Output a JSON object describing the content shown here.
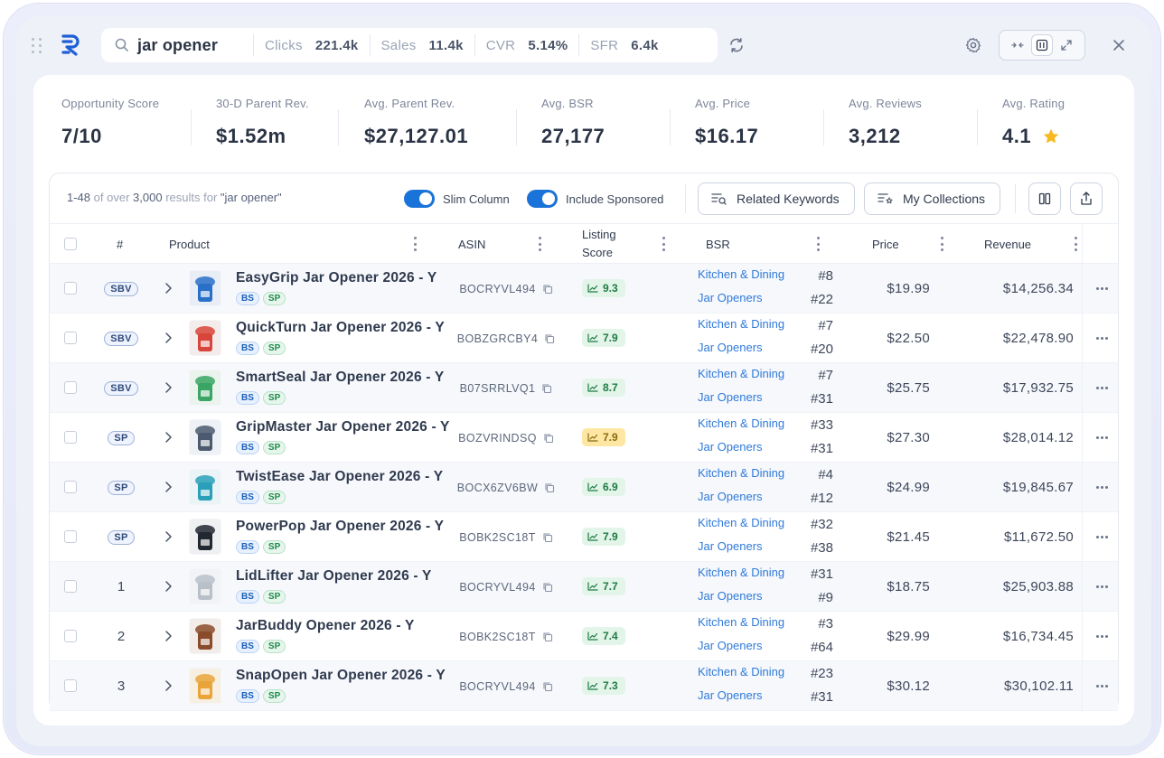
{
  "search": {
    "query": "jar opener",
    "metrics": [
      {
        "label": "Clicks",
        "value": "221.4k"
      },
      {
        "label": "Sales",
        "value": "11.4k"
      },
      {
        "label": "CVR",
        "value": "5.14%"
      },
      {
        "label": "SFR",
        "value": "6.4k"
      }
    ]
  },
  "stats": [
    {
      "label": "Opportunity Score",
      "value": "7/10"
    },
    {
      "label": "30-D Parent Rev.",
      "value": "$1.52m"
    },
    {
      "label": "Avg. Parent Rev.",
      "value": "$27,127.01"
    },
    {
      "label": "Avg. BSR",
      "value": "27,177"
    },
    {
      "label": "Avg. Price",
      "value": "$16.17"
    },
    {
      "label": "Avg. Reviews",
      "value": "3,212"
    },
    {
      "label": "Avg. Rating",
      "value": "4.1"
    }
  ],
  "toolbar": {
    "range": "1-48",
    "of_over": "of over",
    "total": "3,000",
    "results_for": "results for",
    "query_quoted": "\"jar opener\"",
    "slim_column": "Slim Column",
    "include_sponsored": "Include Sponsored",
    "related_keywords": "Related Keywords",
    "my_collections": "My Collections"
  },
  "columns": {
    "rank": "#",
    "product": "Product",
    "asin": "ASIN",
    "listing_score_1": "Listing",
    "listing_score_2": "Score",
    "bsr": "BSR",
    "price": "Price",
    "revenue": "Revenue"
  },
  "colors": {
    "accent": "#1a73d8",
    "link": "#2f7ad9",
    "score_green": "#e2f5e8",
    "score_yellow": "#fde7a2",
    "star": "#f6b921"
  },
  "rows": [
    {
      "rank": "SBV",
      "rank_type": "tag",
      "name": "EasyGrip Jar Opener 2026 - Y",
      "asin": "BOCRYVL494",
      "score": "9.3",
      "score_color": "g",
      "cat1": "Kitchen & Dining",
      "bsr1": "#8",
      "cat2": "Jar Openers",
      "bsr2": "#22",
      "price": "$19.99",
      "revenue": "$14,256.34",
      "thumb": "blue"
    },
    {
      "rank": "SBV",
      "rank_type": "tag",
      "name": "QuickTurn Jar Opener 2026 - Y",
      "asin": "BOBZGRCBY4",
      "score": "7.9",
      "score_color": "g",
      "cat1": "Kitchen & Dining",
      "bsr1": "#7",
      "cat2": "Jar Openers",
      "bsr2": "#20",
      "price": "$22.50",
      "revenue": "$22,478.90",
      "thumb": "red"
    },
    {
      "rank": "SBV",
      "rank_type": "tag",
      "name": "SmartSeal Jar Opener 2026 - Y",
      "asin": "B07SRRLVQ1",
      "score": "8.7",
      "score_color": "g",
      "cat1": "Kitchen & Dining",
      "bsr1": "#7",
      "cat2": "Jar Openers",
      "bsr2": "#31",
      "price": "$25.75",
      "revenue": "$17,932.75",
      "thumb": "green"
    },
    {
      "rank": "SP",
      "rank_type": "tag",
      "name": "GripMaster Jar Opener 2026 - Y",
      "asin": "BOZVRINDSQ",
      "score": "7.9",
      "score_color": "y",
      "cat1": "Kitchen & Dining",
      "bsr1": "#33",
      "cat2": "Jar Openers",
      "bsr2": "#31",
      "price": "$27.30",
      "revenue": "$28,014.12",
      "thumb": "grip"
    },
    {
      "rank": "SP",
      "rank_type": "tag",
      "name": "TwistEase Jar Opener 2026 - Y",
      "asin": "BOCX6ZV6BW",
      "score": "6.9",
      "score_color": "g",
      "cat1": "Kitchen & Dining",
      "bsr1": "#4",
      "cat2": "Jar Openers",
      "bsr2": "#12",
      "price": "$24.99",
      "revenue": "$19,845.67",
      "thumb": "teal"
    },
    {
      "rank": "SP",
      "rank_type": "tag",
      "name": "PowerPop Jar Opener 2026 - Y",
      "asin": "BOBK2SC18T",
      "score": "7.9",
      "score_color": "g",
      "cat1": "Kitchen & Dining",
      "bsr1": "#32",
      "cat2": "Jar Openers",
      "bsr2": "#38",
      "price": "$21.45",
      "revenue": "$11,672.50",
      "thumb": "black"
    },
    {
      "rank": "1",
      "rank_type": "num",
      "name": "LidLifter Jar Opener 2026 - Y",
      "asin": "BOCRYVL494",
      "score": "7.7",
      "score_color": "g",
      "cat1": "Kitchen & Dining",
      "bsr1": "#31",
      "cat2": "Jar Openers",
      "bsr2": "#9",
      "price": "$18.75",
      "revenue": "$25,903.88",
      "thumb": "white"
    },
    {
      "rank": "2",
      "rank_type": "num",
      "name": "JarBuddy Opener 2026 - Y",
      "asin": "BOBK2SC18T",
      "score": "7.4",
      "score_color": "g",
      "cat1": "Kitchen & Dining",
      "bsr1": "#3",
      "cat2": "Jar Openers",
      "bsr2": "#64",
      "price": "$29.99",
      "revenue": "$16,734.45",
      "thumb": "brown"
    },
    {
      "rank": "3",
      "rank_type": "num",
      "name": "SnapOpen Jar Opener 2026 - Y",
      "asin": "BOCRYVL494",
      "score": "7.3",
      "score_color": "g",
      "cat1": "Kitchen & Dining",
      "bsr1": "#23",
      "cat2": "Jar Openers",
      "bsr2": "#31",
      "price": "$30.12",
      "revenue": "$30,102.11",
      "thumb": "jar"
    }
  ]
}
